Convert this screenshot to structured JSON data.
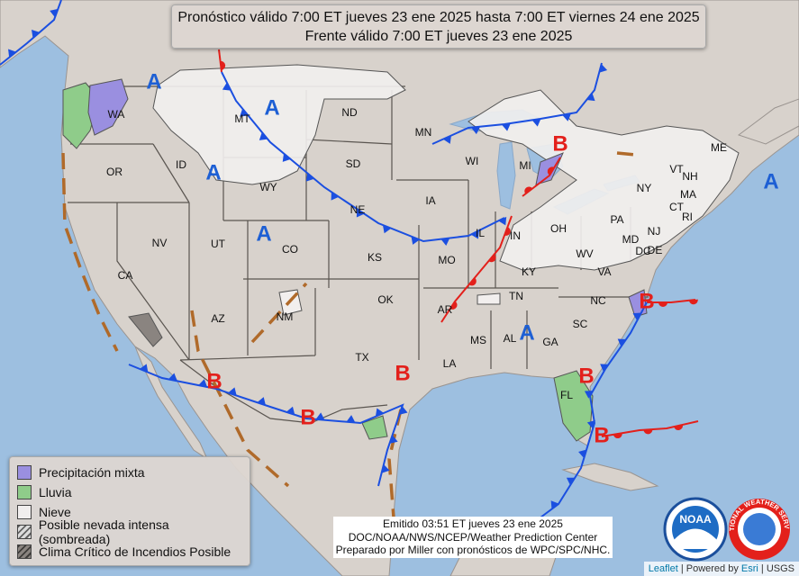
{
  "header": {
    "line1": "Pronóstico válido 7:00 ET jueves 23 ene 2025 hasta 7:00 ET viernes 24 ene 2025",
    "line2": "Frente válido 7:00 ET jueves 23 ene 2025"
  },
  "states": [
    "WA",
    "OR",
    "ID",
    "MT",
    "WY",
    "ND",
    "SD",
    "NE",
    "MN",
    "IA",
    "WI",
    "MI",
    "IL",
    "IN",
    "OH",
    "KY",
    "TN",
    "MS",
    "AL",
    "GA",
    "FL",
    "SC",
    "NC",
    "VA",
    "WV",
    "PA",
    "NY",
    "VT",
    "NH",
    "ME",
    "MA",
    "CT",
    "RI",
    "NJ",
    "DE",
    "MD",
    "DC",
    "CA",
    "NV",
    "UT",
    "AZ",
    "CO",
    "NM",
    "KS",
    "OK",
    "TX",
    "MO",
    "AR",
    "LA"
  ],
  "pressure_centers": [
    {
      "label": "A",
      "color": "#1d5fd4"
    },
    {
      "label": "A",
      "color": "#1d5fd4"
    },
    {
      "label": "A",
      "color": "#1d5fd4"
    },
    {
      "label": "A",
      "color": "#1d5fd4"
    },
    {
      "label": "A",
      "color": "#1d5fd4"
    },
    {
      "label": "A",
      "color": "#1d5fd4"
    },
    {
      "label": "B",
      "color": "#e3201b"
    },
    {
      "label": "B",
      "color": "#e3201b"
    },
    {
      "label": "B",
      "color": "#e3201b"
    },
    {
      "label": "B",
      "color": "#e3201b"
    },
    {
      "label": "B",
      "color": "#e3201b"
    },
    {
      "label": "B",
      "color": "#e3201b"
    },
    {
      "label": "B",
      "color": "#e3201b"
    }
  ],
  "legend": [
    {
      "label": "Precipitación mixta",
      "color": "#9a8fe0"
    },
    {
      "label": "Lluvia",
      "color": "#8fcc8a"
    },
    {
      "label": "Nieve",
      "color": "#f1eeee"
    },
    {
      "label": "Posible nevada intensa (sombreada)",
      "color": "#dcdcdc"
    },
    {
      "label": "Clima Crítico de Incendios Posible",
      "color": "#8a8480"
    }
  ],
  "footer": [
    "Emitido 03:51 ET jueves 23 ene 2025",
    "DOC/NOAA/NWS/NCEP/Weather Prediction Center",
    "Preparado por Miller con pronósticos de WPC/SPC/NHC."
  ],
  "logos": {
    "noaa": "NOAA",
    "nws": "NATIONAL WEATHER SERVICE"
  },
  "attribution": [
    "Leaflet",
    " | Powered by ",
    "Esri",
    " | USGS"
  ]
}
